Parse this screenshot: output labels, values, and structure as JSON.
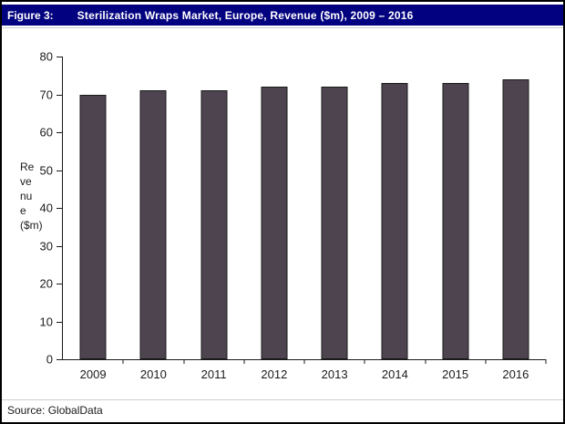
{
  "header": {
    "figure_label": "Figure 3:",
    "title": "Sterilization Wraps Market, Europe, Revenue ($m), 2009 – 2016"
  },
  "source": {
    "text": "Source: GlobalData"
  },
  "colors": {
    "header_bg": "#020280",
    "header_text": "#ffffff",
    "bar_fill": "#4d4450",
    "bar_border": "#1a1a1a",
    "axis": "#1a1a1a",
    "separator": "#cfcfcf"
  },
  "chart_data": {
    "type": "bar",
    "title": "Sterilization Wraps Market, Europe, Revenue ($m), 2009 – 2016",
    "categories": [
      "2009",
      "2010",
      "2011",
      "2012",
      "2013",
      "2014",
      "2015",
      "2016"
    ],
    "values": [
      70,
      71,
      71,
      72,
      72,
      73,
      73,
      74
    ],
    "xlabel": "",
    "ylabel": "Revenue ($m)",
    "ylim": [
      0,
      80
    ],
    "yticks": [
      0,
      10,
      20,
      30,
      40,
      50,
      60,
      70,
      80
    ],
    "grid": false,
    "legend": "none"
  }
}
